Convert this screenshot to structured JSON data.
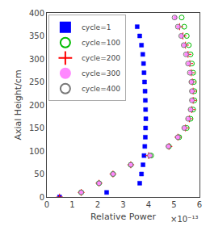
{
  "chart_data": {
    "type": "scatter",
    "xlabel": "Relative Power",
    "ylabel": "Axial Height/cm",
    "xlim": [
      0,
      6e-13
    ],
    "ylim": [
      0,
      400
    ],
    "xticks": [
      0,
      {
        "value": 1e-13,
        "label": "1"
      },
      {
        "value": 2e-13,
        "label": "2"
      },
      {
        "value": 3e-13,
        "label": "3"
      },
      {
        "value": 4e-13,
        "label": "4"
      },
      {
        "value": 5e-13,
        "label": "5"
      },
      {
        "value": 6e-13,
        "label": "6"
      }
    ],
    "yticks": [
      0,
      50,
      100,
      150,
      200,
      250,
      300,
      350,
      400
    ],
    "annotations": [
      {
        "text": "×10⁻¹³"
      }
    ],
    "grid": false,
    "legend": "upper left",
    "series": [
      {
        "name": "cycle=1",
        "color": "blue",
        "marker": "square",
        "x": [
          5e-14,
          2.35e-13,
          3.65e-13,
          3.72e-13,
          3.78e-13,
          3.82e-13,
          3.85e-13,
          3.87e-13,
          3.88e-13,
          3.89e-13,
          3.88e-13,
          3.87e-13,
          3.86e-13,
          3.84e-13,
          3.82e-13,
          3.8e-13,
          3.77e-13,
          3.72e-13,
          3.65e-13,
          3.55e-13
        ],
        "values": [
          0,
          10,
          30,
          50,
          70,
          90,
          110,
          130,
          150,
          170,
          190,
          210,
          230,
          250,
          270,
          290,
          310,
          330,
          350,
          370
        ]
      },
      {
        "name": "cycle=100",
        "color": "#00bb00",
        "marker": "circle-open",
        "x": [
          1.35e-13,
          2.05e-13,
          2.6e-13,
          3.3e-13,
          4.1e-13,
          4.8e-13,
          5.2e-13,
          5.5e-13,
          5.65e-13,
          5.75e-13,
          5.8e-13,
          5.8e-13,
          5.78e-13,
          5.75e-13,
          5.7e-13,
          5.65e-13,
          5.58e-13,
          5.5e-13,
          5.4e-13,
          5.3e-13
        ],
        "values": [
          10,
          30,
          50,
          70,
          90,
          110,
          130,
          150,
          170,
          190,
          210,
          230,
          250,
          270,
          290,
          310,
          330,
          350,
          370,
          390
        ]
      },
      {
        "name": "cycle=200",
        "color": "red",
        "marker": "plus",
        "x": [
          5e-14,
          1.35e-13,
          2.05e-13,
          2.6e-13,
          3.3e-13,
          4e-13,
          4.8e-13,
          5.15e-13,
          5.45e-13,
          5.6e-13,
          5.7e-13,
          5.75e-13,
          5.75e-13,
          5.72e-13,
          5.68e-13,
          5.62e-13,
          5.55e-13,
          5.45e-13,
          5.35e-13,
          5.22e-13
        ],
        "values": [
          0,
          10,
          30,
          50,
          70,
          90,
          110,
          130,
          150,
          170,
          190,
          210,
          230,
          250,
          270,
          290,
          310,
          330,
          350,
          370
        ]
      },
      {
        "name": "cycle=300",
        "color": "#ff88ff",
        "marker": "circle",
        "x": [
          1.35e-13,
          2.05e-13,
          2.6e-13,
          3.3e-13,
          4.05e-13,
          4.78e-13,
          5.15e-13,
          5.42e-13,
          5.58e-13,
          5.67e-13,
          5.72e-13,
          5.72e-13,
          5.7e-13,
          5.65e-13,
          5.58e-13,
          5.5e-13,
          5.4e-13,
          5.3e-13,
          5.18e-13,
          5.05e-13
        ],
        "values": [
          10,
          30,
          50,
          70,
          90,
          110,
          130,
          150,
          170,
          190,
          210,
          230,
          250,
          270,
          290,
          310,
          330,
          350,
          370,
          390
        ]
      },
      {
        "name": "cycle=400",
        "color": "#777777",
        "marker": "circle-open",
        "x": [
          1.35e-13,
          2.05e-13,
          2.6e-13,
          3.3e-13,
          4.05e-13,
          4.78e-13,
          5.15e-13,
          5.4e-13,
          5.55e-13,
          5.65e-13,
          5.7e-13,
          5.7e-13,
          5.68e-13,
          5.62e-13,
          5.55e-13,
          5.47e-13,
          5.38e-13,
          5.28e-13,
          5.15e-13,
          5.02e-13
        ],
        "values": [
          10,
          30,
          50,
          70,
          90,
          110,
          130,
          150,
          170,
          190,
          210,
          230,
          250,
          270,
          290,
          310,
          330,
          350,
          370,
          390
        ]
      }
    ]
  }
}
